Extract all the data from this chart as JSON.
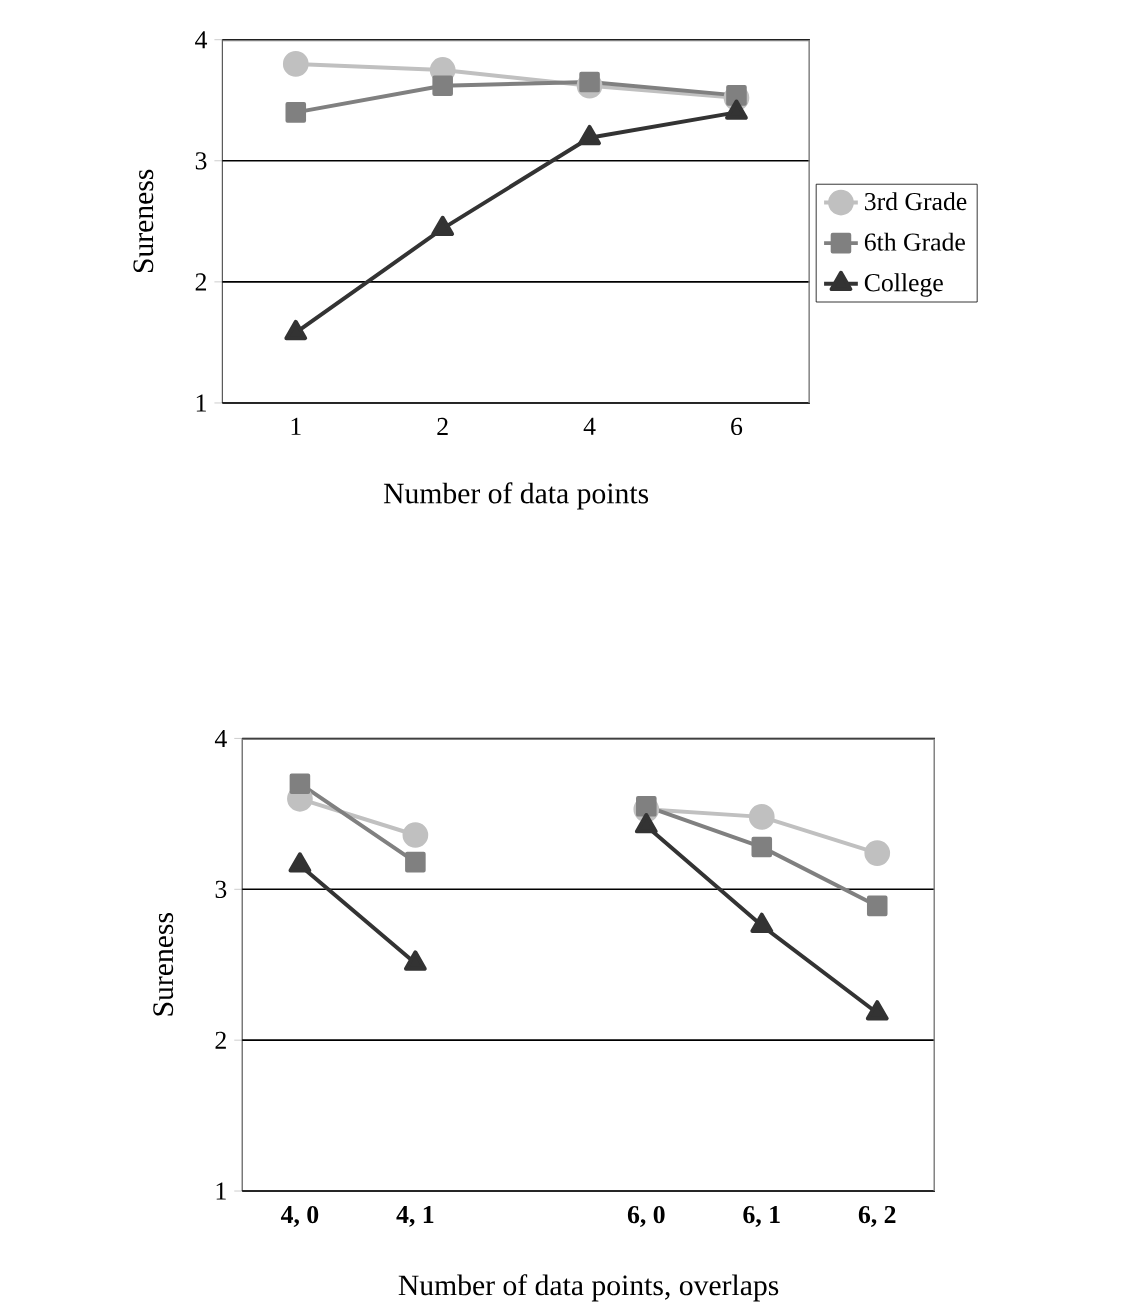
{
  "chart_data": [
    {
      "type": "line",
      "xlabel": "Number of data points",
      "ylabel": "Sureness",
      "categories": [
        "1",
        "2",
        "4",
        "6"
      ],
      "ylim": [
        1,
        4
      ],
      "yticks": [
        1,
        2,
        3,
        4
      ],
      "grid": "y",
      "legend": "right",
      "line_style": "solid",
      "series": [
        {
          "name": "3rd Grade",
          "color": "#c0c0c0",
          "marker": "circle",
          "values": [
            3.8,
            3.75,
            3.62,
            3.52
          ]
        },
        {
          "name": "6th Grade",
          "color": "#808080",
          "marker": "square",
          "values": [
            3.4,
            3.62,
            3.65,
            3.54
          ]
        },
        {
          "name": "College",
          "color": "#333333",
          "marker": "triangle",
          "values": [
            1.58,
            2.44,
            3.19,
            3.4
          ]
        }
      ]
    },
    {
      "type": "line",
      "xlabel": "Number of data points, overlaps",
      "ylabel": "Sureness",
      "categories": [
        "4, 0",
        "4, 1",
        null,
        "6, 0",
        "6, 1",
        "6, 2"
      ],
      "ylim": [
        1,
        4
      ],
      "yticks": [
        1,
        2,
        3,
        4
      ],
      "grid": "y",
      "line_style": "solid",
      "series": [
        {
          "color": "#c0c0c0",
          "marker": "circle",
          "values": [
            3.6,
            3.36,
            null,
            3.53,
            3.48,
            3.24
          ]
        },
        {
          "color": "#808080",
          "marker": "square",
          "values": [
            3.7,
            3.18,
            null,
            3.55,
            3.28,
            2.89
          ]
        },
        {
          "color": "#333333",
          "marker": "triangle",
          "values": [
            3.16,
            2.51,
            null,
            3.42,
            2.76,
            2.18
          ]
        }
      ]
    }
  ]
}
